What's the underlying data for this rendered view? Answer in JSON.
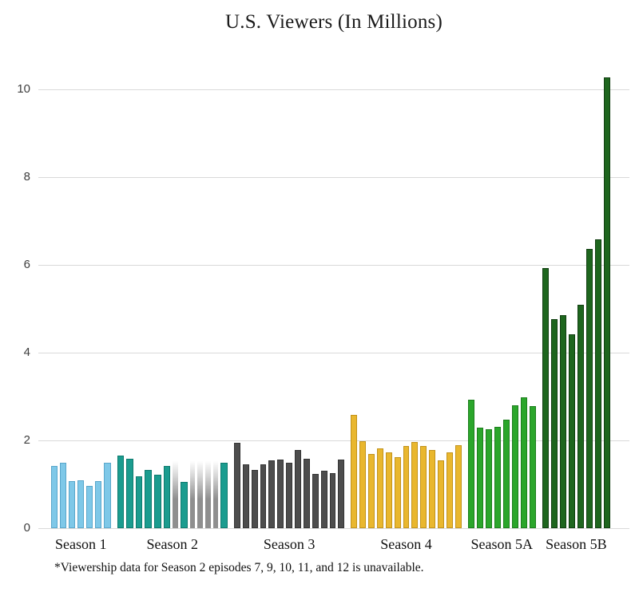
{
  "chart_data": {
    "type": "bar",
    "title": "U.S. Viewers (In Millions)",
    "xlabel": "",
    "ylabel": "",
    "ylim": [
      0,
      10.5
    ],
    "yticks": [
      0,
      2,
      4,
      6,
      8,
      10
    ],
    "grid": "horizontal-light-gray",
    "legend": "none",
    "footnote": "*Viewership data for Season 2 episodes 7, 9, 10, 11, and 12 is unavailable.",
    "colors": {
      "gridline": "#d9d9d9",
      "text": "#1a1a1a",
      "unavailable_gray": "#8f8f8f"
    },
    "unavailable_bar": {
      "display_height": 1.58,
      "style": "gray gradient fading to white at top",
      "meaning": "viewership data unavailable"
    },
    "groups": [
      {
        "label": "Season 1",
        "fill": "#7ec8e8",
        "border": "#5aa7cb",
        "values": [
          1.41,
          1.49,
          1.08,
          1.09,
          0.97,
          1.07,
          1.5
        ]
      },
      {
        "label": "Season 2",
        "fill": "#1b9c8f",
        "border": "#0f7a6e",
        "values": [
          1.66,
          1.58,
          1.19,
          1.32,
          1.21,
          1.41,
          null,
          1.05,
          null,
          null,
          null,
          null,
          1.5
        ]
      },
      {
        "label": "Season 3",
        "fill": "#4d4d4d",
        "border": "#353535",
        "values": [
          1.95,
          1.45,
          1.32,
          1.45,
          1.54,
          1.56,
          1.5,
          1.78,
          1.58,
          1.23,
          1.31,
          1.25,
          1.56
        ]
      },
      {
        "label": "Season 4",
        "fill": "#e9b72e",
        "border": "#c2931c",
        "values": [
          2.58,
          1.98,
          1.69,
          1.81,
          1.73,
          1.61,
          1.88,
          1.96,
          1.88,
          1.79,
          1.55,
          1.72,
          1.9
        ]
      },
      {
        "label": "Season 5A",
        "fill": "#2ba62b",
        "border": "#1d7e1d",
        "values": [
          2.93,
          2.29,
          2.25,
          2.31,
          2.48,
          2.8,
          2.98,
          2.78
        ]
      },
      {
        "label": "Season 5B",
        "fill": "#1e661e",
        "border": "#113f11",
        "values": [
          5.92,
          4.77,
          4.85,
          4.41,
          5.1,
          6.37,
          6.58,
          10.28
        ]
      }
    ]
  }
}
